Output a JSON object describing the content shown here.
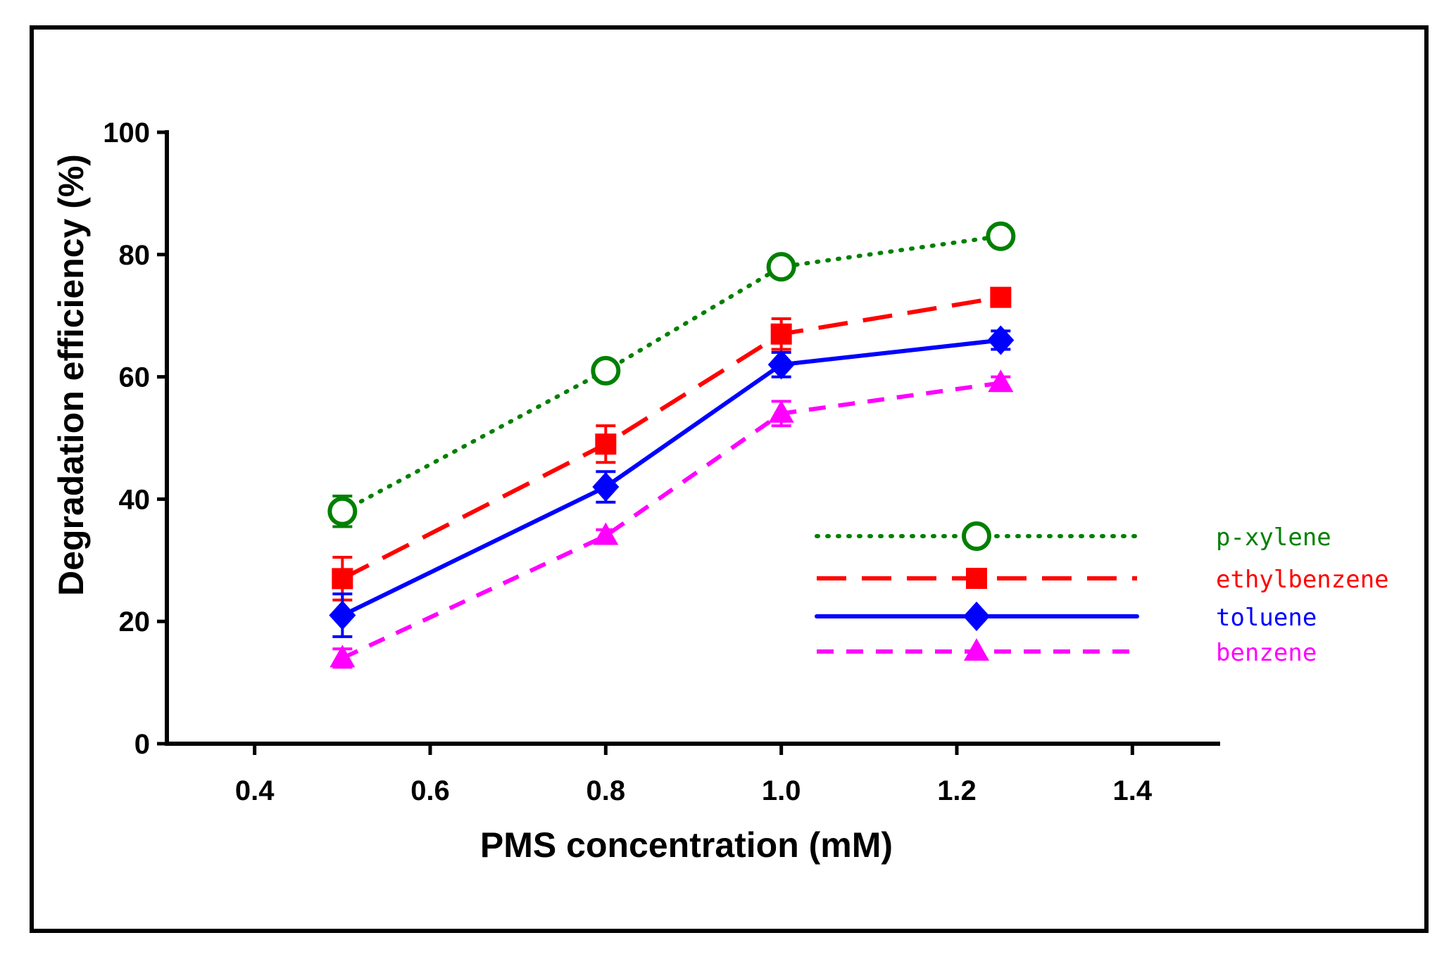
{
  "chart_data": {
    "type": "line",
    "title": "",
    "xlabel": "PMS concentration (mM)",
    "ylabel": "Degradation efficiency (%)",
    "xlim": [
      0.3,
      1.5
    ],
    "ylim": [
      0,
      100
    ],
    "xticks": [
      0.4,
      0.6,
      0.8,
      1.0,
      1.2,
      1.4
    ],
    "xtick_labels": [
      "0.4",
      "0.6",
      "0.8",
      "1.0",
      "1.2",
      "1.4"
    ],
    "yticks": [
      0,
      20,
      40,
      60,
      80,
      100
    ],
    "ytick_labels": [
      "0",
      "20",
      "40",
      "60",
      "80",
      "100"
    ],
    "x": [
      0.5,
      0.8,
      1.0,
      1.25
    ],
    "grid": false,
    "legend_position": "right-middle",
    "series": [
      {
        "name": "p-xylene",
        "color": "#008000",
        "marker": "open-circle",
        "line_style": "dotted",
        "values": [
          38,
          61,
          78,
          83
        ],
        "errors": [
          2.5,
          1.0,
          1.0,
          1.0
        ]
      },
      {
        "name": "ethylbenzene",
        "color": "#ff0000",
        "marker": "filled-square",
        "line_style": "long-dash",
        "values": [
          27,
          49,
          67,
          73
        ],
        "errors": [
          3.5,
          3.0,
          2.5,
          1.0
        ]
      },
      {
        "name": "toluene",
        "color": "#0000ff",
        "marker": "filled-diamond",
        "line_style": "solid",
        "values": [
          21,
          42,
          62,
          66
        ],
        "errors": [
          3.5,
          2.5,
          2.0,
          1.5
        ]
      },
      {
        "name": "benzene",
        "color": "#ff00ff",
        "marker": "filled-triangle",
        "line_style": "short-dash",
        "values": [
          14,
          34,
          54,
          59
        ],
        "errors": [
          1.5,
          1.0,
          2.0,
          1.0
        ]
      }
    ]
  }
}
